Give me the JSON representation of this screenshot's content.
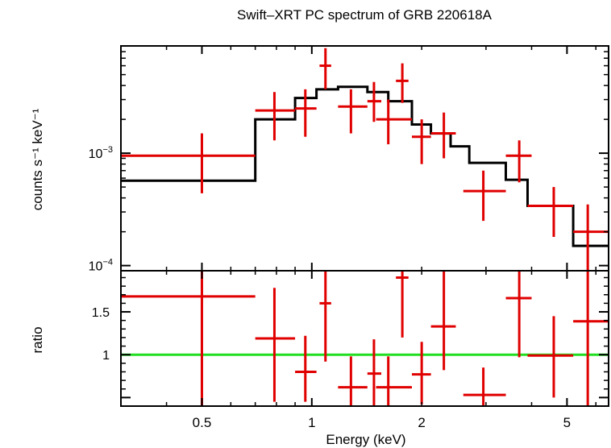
{
  "chart_data": [
    {
      "type": "line",
      "title": "Swift–XRT PC spectrum of GRB 220618A",
      "ylabel": "counts s⁻¹ keV⁻¹",
      "xscale": "log",
      "yscale": "log",
      "xlim": [
        0.3,
        6.5
      ],
      "ylim": [
        9e-05,
        0.009
      ],
      "y_ticks": [
        {
          "value": 0.001,
          "base": "10",
          "exp": "−3"
        },
        {
          "value": 0.0001,
          "base": "10",
          "exp": "−4"
        }
      ],
      "model_color": "#000000",
      "data_color": "#e00000",
      "model_steps": [
        {
          "x0": 0.3,
          "x1": 0.7,
          "y": 0.00057
        },
        {
          "x0": 0.7,
          "x1": 0.9,
          "y": 0.002
        },
        {
          "x0": 0.9,
          "x1": 1.03,
          "y": 0.0031
        },
        {
          "x0": 1.03,
          "x1": 1.18,
          "y": 0.0037
        },
        {
          "x0": 1.18,
          "x1": 1.42,
          "y": 0.0039
        },
        {
          "x0": 1.42,
          "x1": 1.62,
          "y": 0.0035
        },
        {
          "x0": 1.62,
          "x1": 1.88,
          "y": 0.0029
        },
        {
          "x0": 1.88,
          "x1": 2.12,
          "y": 0.0018
        },
        {
          "x0": 2.12,
          "x1": 2.4,
          "y": 0.0015
        },
        {
          "x0": 2.4,
          "x1": 2.7,
          "y": 0.00115
        },
        {
          "x0": 2.7,
          "x1": 3.4,
          "y": 0.00082
        },
        {
          "x0": 3.4,
          "x1": 3.9,
          "y": 0.00058
        },
        {
          "x0": 3.9,
          "x1": 5.2,
          "y": 0.00034
        },
        {
          "x0": 5.2,
          "x1": 6.5,
          "y": 0.00015
        }
      ],
      "points": [
        {
          "x": 0.5,
          "xlo": 0.3,
          "xhi": 0.7,
          "y": 0.00095,
          "ylo": 0.00044,
          "yhi": 0.0015
        },
        {
          "x": 0.79,
          "xlo": 0.7,
          "xhi": 0.9,
          "y": 0.0024,
          "ylo": 0.0013,
          "yhi": 0.0035
        },
        {
          "x": 0.96,
          "xlo": 0.9,
          "xhi": 1.03,
          "y": 0.0025,
          "ylo": 0.0014,
          "yhi": 0.0037
        },
        {
          "x": 1.09,
          "xlo": 1.05,
          "xhi": 1.13,
          "y": 0.006,
          "ylo": 0.0037,
          "yhi": 0.0086
        },
        {
          "x": 1.28,
          "xlo": 1.18,
          "xhi": 1.42,
          "y": 0.0026,
          "ylo": 0.0015,
          "yhi": 0.0037
        },
        {
          "x": 1.48,
          "xlo": 1.42,
          "xhi": 1.55,
          "y": 0.0029,
          "ylo": 0.0019,
          "yhi": 0.0043
        },
        {
          "x": 1.62,
          "xlo": 1.5,
          "xhi": 1.88,
          "y": 0.002,
          "ylo": 0.0012,
          "yhi": 0.003
        },
        {
          "x": 1.77,
          "xlo": 1.7,
          "xhi": 1.84,
          "y": 0.0044,
          "ylo": 0.0028,
          "yhi": 0.0063
        },
        {
          "x": 2.0,
          "xlo": 1.88,
          "xhi": 2.12,
          "y": 0.0014,
          "ylo": 0.0008,
          "yhi": 0.002
        },
        {
          "x": 2.3,
          "xlo": 2.12,
          "xhi": 2.48,
          "y": 0.0015,
          "ylo": 0.0009,
          "yhi": 0.0023
        },
        {
          "x": 2.95,
          "xlo": 2.6,
          "xhi": 3.4,
          "y": 0.00046,
          "ylo": 0.00025,
          "yhi": 0.0007
        },
        {
          "x": 3.7,
          "xlo": 3.4,
          "xhi": 4.0,
          "y": 0.00095,
          "ylo": 0.00055,
          "yhi": 0.0013
        },
        {
          "x": 4.6,
          "xlo": 3.9,
          "xhi": 5.2,
          "y": 0.00034,
          "ylo": 0.00018,
          "yhi": 0.0005
        },
        {
          "x": 5.7,
          "xlo": 5.2,
          "xhi": 6.5,
          "y": 0.0002,
          "ylo": 9e-05,
          "yhi": 0.00035
        }
      ]
    },
    {
      "type": "scatter",
      "xlabel": "Energy (keV)",
      "ylabel": "ratio",
      "xscale": "log",
      "xlim": [
        0.3,
        6.5
      ],
      "ylim": [
        0.4,
        1.98
      ],
      "x_ticks": [
        {
          "value": 0.5,
          "label": "0.5"
        },
        {
          "value": 1,
          "label": "1"
        },
        {
          "value": 2,
          "label": "2"
        },
        {
          "value": 5,
          "label": "5"
        }
      ],
      "y_ticks": [
        {
          "value": 1,
          "label": "1"
        },
        {
          "value": 1.5,
          "label": "1.5"
        }
      ],
      "reference_line": {
        "y": 1,
        "color": "#22dd22"
      },
      "data_color": "#e00000",
      "points": [
        {
          "x": 0.5,
          "xlo": 0.3,
          "xhi": 0.7,
          "y": 1.68,
          "ylo": 0.4,
          "yhi": 1.98
        },
        {
          "x": 0.79,
          "xlo": 0.7,
          "xhi": 0.9,
          "y": 1.19,
          "ylo": 0.45,
          "yhi": 1.78
        },
        {
          "x": 0.96,
          "xlo": 0.9,
          "xhi": 1.03,
          "y": 0.8,
          "ylo": 0.45,
          "yhi": 1.22
        },
        {
          "x": 1.09,
          "xlo": 1.05,
          "xhi": 1.13,
          "y": 1.6,
          "ylo": 0.92,
          "yhi": 1.98
        },
        {
          "x": 1.28,
          "xlo": 1.18,
          "xhi": 1.42,
          "y": 0.62,
          "ylo": 0.4,
          "yhi": 0.98
        },
        {
          "x": 1.48,
          "xlo": 1.42,
          "xhi": 1.55,
          "y": 0.78,
          "ylo": 0.4,
          "yhi": 1.18
        },
        {
          "x": 1.62,
          "xlo": 1.5,
          "xhi": 1.88,
          "y": 0.62,
          "ylo": 0.4,
          "yhi": 0.98
        },
        {
          "x": 1.77,
          "xlo": 1.7,
          "xhi": 1.84,
          "y": 1.9,
          "ylo": 1.2,
          "yhi": 1.98
        },
        {
          "x": 2.0,
          "xlo": 1.88,
          "xhi": 2.12,
          "y": 0.77,
          "ylo": 0.42,
          "yhi": 1.15
        },
        {
          "x": 2.3,
          "xlo": 2.12,
          "xhi": 2.48,
          "y": 1.33,
          "ylo": 0.82,
          "yhi": 1.98
        },
        {
          "x": 2.95,
          "xlo": 2.6,
          "xhi": 3.4,
          "y": 0.53,
          "ylo": 0.4,
          "yhi": 0.85
        },
        {
          "x": 3.7,
          "xlo": 3.4,
          "xhi": 4.0,
          "y": 1.66,
          "ylo": 0.97,
          "yhi": 1.98
        },
        {
          "x": 4.6,
          "xlo": 3.9,
          "xhi": 5.2,
          "y": 0.99,
          "ylo": 0.5,
          "yhi": 1.45
        },
        {
          "x": 5.7,
          "xlo": 5.2,
          "xhi": 6.5,
          "y": 1.39,
          "ylo": 0.4,
          "yhi": 1.98
        }
      ]
    }
  ]
}
